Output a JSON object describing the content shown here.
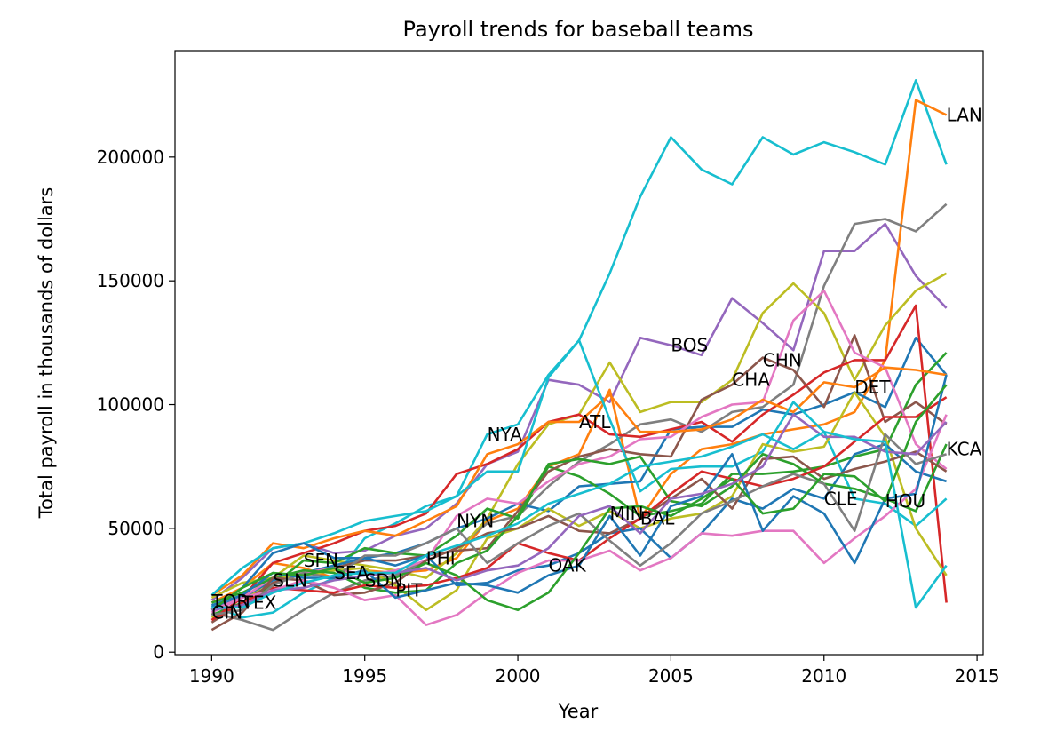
{
  "chart_data": {
    "type": "line",
    "title": "Payroll trends for baseball teams",
    "xlabel": "Year",
    "ylabel": "Total payroll in thousands of dollars",
    "xlim": [
      1988.8,
      2015.2
    ],
    "ylim": [
      -1000,
      243000
    ],
    "xticks": [
      1990,
      1995,
      2000,
      2005,
      2010,
      2015
    ],
    "yticks": [
      0,
      50000,
      100000,
      150000,
      200000
    ],
    "grid": false,
    "legend": "none",
    "years": [
      1990,
      1991,
      1992,
      1993,
      1994,
      1995,
      1996,
      1997,
      1998,
      1999,
      2000,
      2001,
      2002,
      2003,
      2004,
      2005,
      2006,
      2007,
      2008,
      2009,
      2010,
      2011,
      2012,
      2013,
      2014
    ],
    "series": [
      {
        "color": "#17becf",
        "values": [
          19000,
          14000,
          16000,
          24000,
          30000,
          46000,
          52000,
          59000,
          63000,
          88000,
          92000,
          112000,
          126000,
          153000,
          184000,
          208000,
          195000,
          189000,
          208000,
          201000,
          206000,
          202000,
          197000,
          231000,
          197000
        ]
      },
      {
        "color": "#9467bd",
        "values": [
          21000,
          30000,
          42000,
          44000,
          40000,
          41000,
          47000,
          50000,
          60000,
          76000,
          81000,
          110000,
          108000,
          101000,
          127000,
          124000,
          120000,
          143000,
          133000,
          122000,
          162000,
          162000,
          173000,
          152000,
          139000
        ]
      },
      {
        "color": "#ff7f0e",
        "values": [
          20000,
          26000,
          36000,
          34000,
          30000,
          33000,
          32000,
          33000,
          38000,
          53000,
          58000,
          75000,
          80000,
          106000,
          54000,
          72000,
          82000,
          84000,
          88000,
          90000,
          92000,
          97000,
          118000,
          223000,
          217000
        ]
      },
      {
        "color": "#7f7f7f",
        "values": [
          16000,
          13000,
          9000,
          17000,
          24000,
          29000,
          31000,
          37000,
          42000,
          52000,
          55000,
          67000,
          77000,
          84000,
          92000,
          94000,
          89000,
          97000,
          99000,
          108000,
          148000,
          173000,
          175000,
          170000,
          181000
        ]
      },
      {
        "color": "#bcbd22",
        "values": [
          14000,
          20000,
          30000,
          39000,
          37000,
          35000,
          33000,
          30000,
          40000,
          54000,
          76000,
          92000,
          96000,
          117000,
          97000,
          101000,
          101000,
          110000,
          137000,
          149000,
          137000,
          110000,
          132000,
          146000,
          153000
        ]
      },
      {
        "color": "#1f77b4",
        "values": [
          18000,
          22000,
          29000,
          32000,
          35000,
          38000,
          40000,
          44000,
          50000,
          54000,
          60000,
          57000,
          67000,
          68000,
          69000,
          90000,
          91000,
          91000,
          98000,
          96000,
          100000,
          105000,
          99000,
          127000,
          112000
        ]
      },
      {
        "color": "#2ca02c",
        "values": [
          15000,
          20000,
          27000,
          37000,
          36000,
          42000,
          40000,
          39000,
          47000,
          58000,
          54000,
          75000,
          71000,
          64000,
          55000,
          57000,
          60000,
          72000,
          72000,
          73000,
          75000,
          79000,
          82000,
          108000,
          121000
        ]
      },
      {
        "color": "#8c564b",
        "values": [
          12000,
          20000,
          28000,
          32000,
          34000,
          37000,
          37000,
          39000,
          41000,
          42000,
          57000,
          73000,
          79000,
          82000,
          80000,
          79000,
          102000,
          108000,
          119000,
          114000,
          99000,
          128000,
          93000,
          101000,
          92000
        ]
      },
      {
        "color": "#d62728",
        "values": [
          13000,
          22000,
          36000,
          40000,
          44000,
          49000,
          51000,
          56000,
          72000,
          76000,
          82000,
          93000,
          96000,
          88000,
          87000,
          90000,
          93000,
          85000,
          96000,
          104000,
          113000,
          118000,
          118000,
          140000,
          20000
        ]
      },
      {
        "color": "#e377c2",
        "values": [
          17000,
          22000,
          30000,
          32000,
          34000,
          31000,
          33000,
          37000,
          55000,
          62000,
          60000,
          69000,
          76000,
          79000,
          86000,
          87000,
          95000,
          100000,
          101000,
          134000,
          146000,
          121000,
          115000,
          84000,
          74000
        ]
      },
      {
        "color": "#ff7f0e",
        "values": [
          23000,
          31000,
          44000,
          42000,
          46000,
          49000,
          47000,
          53000,
          59000,
          80000,
          84000,
          93000,
          93000,
          104000,
          89000,
          89000,
          90000,
          94000,
          102000,
          97000,
          109000,
          107000,
          115000,
          114000,
          112000
        ]
      },
      {
        "color": "#17becf",
        "values": [
          23000,
          34000,
          42000,
          44000,
          48000,
          53000,
          55000,
          57000,
          63000,
          73000,
          73000,
          111000,
          126000,
          94000,
          65000,
          74000,
          75000,
          75000,
          81000,
          101000,
          89000,
          62000,
          60000,
          51000,
          62000
        ]
      },
      {
        "color": "#bcbd22",
        "values": [
          22000,
          28000,
          30000,
          31000,
          33000,
          34000,
          27000,
          17000,
          25000,
          46000,
          50000,
          58000,
          51000,
          57000,
          50000,
          54000,
          56000,
          63000,
          84000,
          81000,
          83000,
          105000,
          87000,
          50000,
          31000
        ]
      },
      {
        "color": "#1f77b4",
        "values": [
          17000,
          26000,
          40000,
          44000,
          38000,
          38000,
          35000,
          39000,
          27000,
          28000,
          33000,
          35000,
          40000,
          48000,
          50000,
          38000,
          48000,
          62000,
          58000,
          66000,
          62000,
          80000,
          84000,
          73000,
          69000
        ]
      },
      {
        "color": "#2ca02c",
        "values": [
          20000,
          24000,
          30000,
          33000,
          32000,
          26000,
          24000,
          25000,
          36000,
          41000,
          55000,
          76000,
          78000,
          76000,
          79000,
          61000,
          59000,
          67000,
          80000,
          76000,
          68000,
          66000,
          62000,
          57000,
          84000
        ]
      },
      {
        "color": "#8c564b",
        "values": [
          9000,
          16000,
          30000,
          29000,
          23000,
          24000,
          28000,
          37000,
          42000,
          48000,
          50000,
          55000,
          49000,
          48000,
          54000,
          62000,
          70000,
          58000,
          78000,
          79000,
          70000,
          74000,
          77000,
          81000,
          73000
        ]
      },
      {
        "color": "#d62728",
        "values": [
          13000,
          20000,
          26000,
          25000,
          24000,
          27000,
          26000,
          27000,
          30000,
          34000,
          44000,
          40000,
          37000,
          46000,
          54000,
          64000,
          73000,
          70000,
          67000,
          70000,
          75000,
          85000,
          95000,
          95000,
          103000
        ]
      },
      {
        "color": "#e377c2",
        "values": [
          16000,
          22000,
          25000,
          29000,
          26000,
          21000,
          23000,
          11000,
          15000,
          24000,
          32000,
          37000,
          37000,
          41000,
          33000,
          38000,
          48000,
          47000,
          49000,
          49000,
          36000,
          46000,
          55000,
          66000,
          96000
        ]
      },
      {
        "color": "#7f7f7f",
        "values": [
          15000,
          17000,
          27000,
          32000,
          30000,
          39000,
          39000,
          44000,
          50000,
          36000,
          44000,
          51000,
          56000,
          45000,
          35000,
          44000,
          56000,
          61000,
          67000,
          72000,
          68000,
          49000,
          88000,
          76000,
          80000
        ]
      },
      {
        "color": "#1f77b4",
        "values": [
          19000,
          23000,
          32000,
          30000,
          30000,
          33000,
          22000,
          25000,
          28000,
          27000,
          24000,
          31000,
          35000,
          55000,
          39000,
          59000,
          63000,
          80000,
          49000,
          63000,
          56000,
          36000,
          62000,
          64000,
          112000
        ]
      },
      {
        "color": "#2ca02c",
        "values": [
          17000,
          26000,
          32000,
          31000,
          34000,
          28000,
          30000,
          36000,
          31000,
          21000,
          17000,
          24000,
          40000,
          58000,
          59000,
          55000,
          62000,
          70000,
          56000,
          58000,
          72000,
          71000,
          61000,
          93000,
          108000
        ]
      },
      {
        "color": "#9467bd",
        "values": [
          17000,
          19000,
          25000,
          26000,
          29000,
          31000,
          32000,
          34000,
          29000,
          33000,
          35000,
          42000,
          55000,
          59000,
          48000,
          62000,
          64000,
          68000,
          75000,
          96000,
          87000,
          87000,
          81000,
          80000,
          93000
        ]
      },
      {
        "color": "#17becf",
        "values": [
          18000,
          18000,
          24000,
          28000,
          31000,
          32000,
          32000,
          39000,
          43000,
          47000,
          52000,
          60000,
          64000,
          68000,
          75000,
          77000,
          79000,
          83000,
          88000,
          82000,
          89000,
          86000,
          85000,
          18000,
          35000
        ]
      }
    ],
    "annotations": [
      {
        "text": "LAN",
        "x": 2014,
        "y": 217000
      },
      {
        "text": "BOS",
        "x": 2005,
        "y": 124000
      },
      {
        "text": "CHN",
        "x": 2008,
        "y": 118000
      },
      {
        "text": "CHA",
        "x": 2007,
        "y": 110000
      },
      {
        "text": "DET",
        "x": 2011,
        "y": 107000
      },
      {
        "text": "NYA",
        "x": 1999,
        "y": 88000
      },
      {
        "text": "ATL",
        "x": 2002,
        "y": 93000
      },
      {
        "text": "KCA",
        "x": 2014,
        "y": 82000
      },
      {
        "text": "CLE",
        "x": 2010,
        "y": 62000
      },
      {
        "text": "HOU",
        "x": 2012,
        "y": 61000
      },
      {
        "text": "NYN",
        "x": 1998,
        "y": 53000
      },
      {
        "text": "MIN",
        "x": 2003,
        "y": 56000
      },
      {
        "text": "BAL",
        "x": 2004,
        "y": 54000
      },
      {
        "text": "SFN",
        "x": 1993,
        "y": 37000
      },
      {
        "text": "PHI",
        "x": 1997,
        "y": 38000
      },
      {
        "text": "OAK",
        "x": 2001,
        "y": 35000
      },
      {
        "text": "SEA",
        "x": 1994,
        "y": 32000
      },
      {
        "text": "SLN",
        "x": 1992,
        "y": 29000
      },
      {
        "text": "SDN",
        "x": 1995,
        "y": 29000
      },
      {
        "text": "PIT",
        "x": 1996,
        "y": 25000
      },
      {
        "text": "TOR",
        "x": 1990,
        "y": 20500
      },
      {
        "text": "TEX",
        "x": 1991,
        "y": 20000
      },
      {
        "text": "CIN",
        "x": 1990,
        "y": 16000
      }
    ]
  }
}
